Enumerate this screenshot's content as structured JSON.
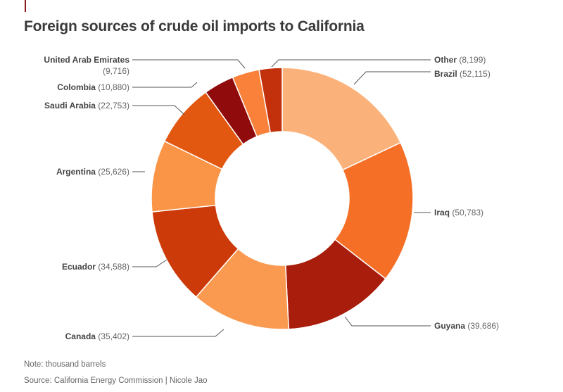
{
  "header": {
    "title": "Foreign sources of crude oil imports to California"
  },
  "footer": {
    "note": "Note: thousand barrels",
    "source": "Source: California Energy Commission | Nicole Jao"
  },
  "chart_data": {
    "type": "pie",
    "donut": true,
    "title": "Foreign sources of crude oil imports to California",
    "unit": "thousand barrels",
    "slices": [
      {
        "name": "Brazil",
        "value": 52115,
        "value_label": "(52,115)",
        "color": "#fbb27a"
      },
      {
        "name": "Iraq",
        "value": 50783,
        "value_label": "(50,783)",
        "color": "#f56f26"
      },
      {
        "name": "Guyana",
        "value": 39686,
        "value_label": "(39,686)",
        "color": "#a81d0b"
      },
      {
        "name": "Canada",
        "value": 35402,
        "value_label": "(35,402)",
        "color": "#f99a50"
      },
      {
        "name": "Ecuador",
        "value": 34588,
        "value_label": "(34,588)",
        "color": "#cd3a0a"
      },
      {
        "name": "Argentina",
        "value": 25626,
        "value_label": "(25,626)",
        "color": "#fa9548"
      },
      {
        "name": "Saudi Arabia",
        "value": 22753,
        "value_label": "(22,753)",
        "color": "#e25810"
      },
      {
        "name": "Colombia",
        "value": 10880,
        "value_label": "(10,880)",
        "color": "#900c0c"
      },
      {
        "name": "United Arab Emirates",
        "value": 9716,
        "value_label": "(9,716)",
        "color": "#fa813a"
      },
      {
        "name": "Other",
        "value": 8199,
        "value_label": "(8,199)",
        "color": "#c2310b"
      }
    ]
  }
}
